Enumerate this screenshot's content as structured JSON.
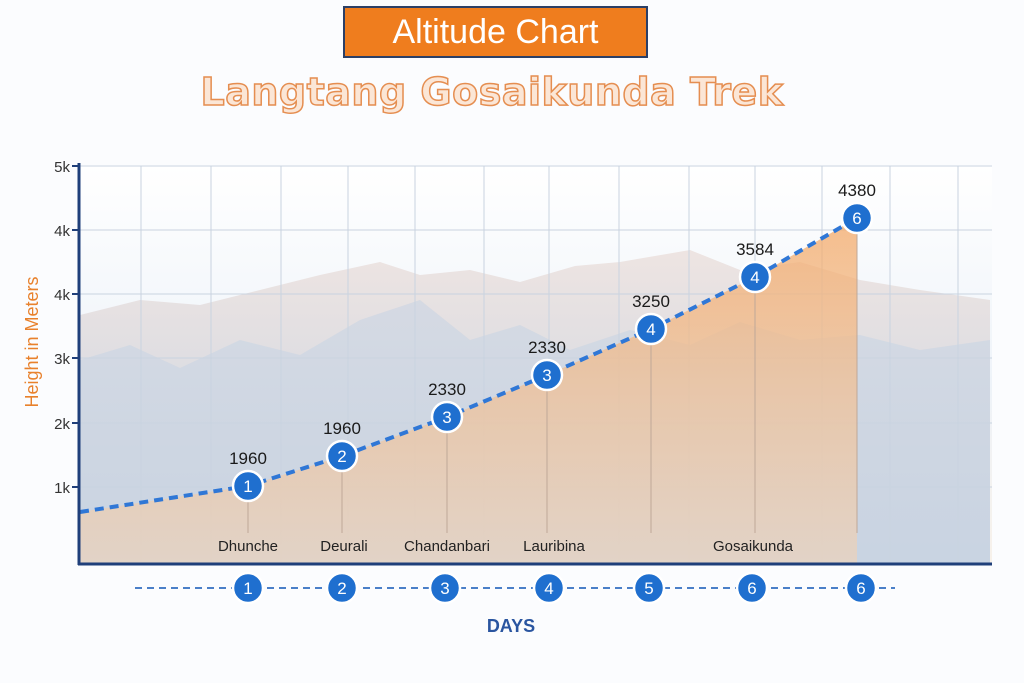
{
  "title": "Altitude Chart",
  "subtitle": "Langtang Gosaikunda Trek",
  "colors": {
    "title_bg": "#ef7d1e",
    "title_border": "#2b3f66",
    "line": "#2f77d6",
    "marker": "#1f6fcf",
    "area": "#f3b47a",
    "ylabel": "#e8812c",
    "xlabel": "#2a55a0"
  },
  "chart_data": {
    "type": "area",
    "ylabel": "Height in Meters",
    "xlabel": "DAYS",
    "y_ticks": [
      "1k",
      "2k",
      "3k",
      "4k",
      "4k",
      "5k"
    ],
    "ylim": [
      0,
      5000
    ],
    "grid": true,
    "points": [
      {
        "marker": "1",
        "value": 1960,
        "label": "1960",
        "place": "Dhunche"
      },
      {
        "marker": "2",
        "value": 1960,
        "label": "1960",
        "place": "Deurali"
      },
      {
        "marker": "3",
        "value": 2330,
        "label": "2330",
        "place": "Chandanbari"
      },
      {
        "marker": "3",
        "value": 2330,
        "label": "2330",
        "place": "Lauribina"
      },
      {
        "marker": "4",
        "value": 3250,
        "label": "3250",
        "place": ""
      },
      {
        "marker": "4",
        "value": 3584,
        "label": "3584",
        "place": "Gosaikunda"
      },
      {
        "marker": "6",
        "value": 4380,
        "label": "4380",
        "place": ""
      }
    ],
    "days": [
      "1",
      "2",
      "3",
      "4",
      "5",
      "6",
      "6"
    ]
  }
}
